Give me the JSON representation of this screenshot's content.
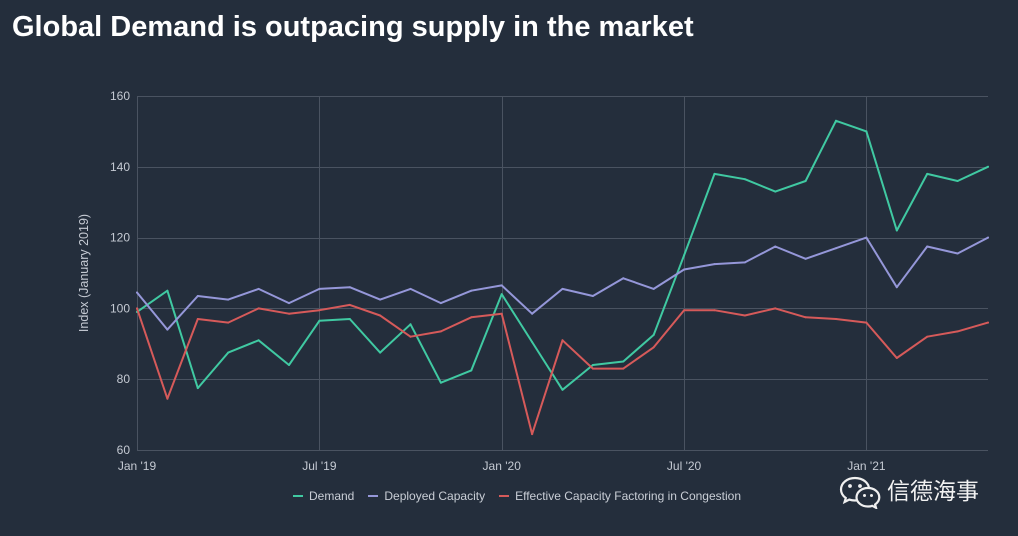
{
  "colors": {
    "background": "#242e3c",
    "grid": "#4a5361",
    "tick_text": "#c5cad3",
    "title": "#ffffff"
  },
  "chart_data": {
    "type": "line",
    "title": "Global Demand is outpacing supply in the market",
    "ylabel": "Index (January 2019)",
    "ylim": [
      60,
      160
    ],
    "yticks": [
      60,
      80,
      100,
      120,
      140,
      160
    ],
    "xlim": [
      "2019-01",
      "2021-05"
    ],
    "xticks": [
      {
        "label": "Jan '19",
        "x": "2019-01"
      },
      {
        "label": "Jul '19",
        "x": "2019-07"
      },
      {
        "label": "Jan '20",
        "x": "2020-01"
      },
      {
        "label": "Jul '20",
        "x": "2020-07"
      },
      {
        "label": "Jan '21",
        "x": "2021-01"
      }
    ],
    "x": [
      "2019-01",
      "2019-02",
      "2019-03",
      "2019-04",
      "2019-05",
      "2019-06",
      "2019-07",
      "2019-08",
      "2019-09",
      "2019-10",
      "2019-11",
      "2019-12",
      "2020-01",
      "2020-02",
      "2020-03",
      "2020-04",
      "2020-05",
      "2020-06",
      "2020-07",
      "2020-08",
      "2020-09",
      "2020-10",
      "2020-11",
      "2020-12",
      "2021-01",
      "2021-02",
      "2021-03",
      "2021-04",
      "2021-05"
    ],
    "series": [
      {
        "name": "Demand",
        "color": "#40c9a2",
        "values": [
          99,
          105,
          77.5,
          87.5,
          91,
          84,
          96.5,
          97,
          87.5,
          95.5,
          79,
          82.5,
          104,
          90.5,
          77,
          84,
          85,
          92.5,
          115,
          138,
          136.5,
          133,
          136,
          153,
          150,
          122,
          138,
          136,
          140
        ]
      },
      {
        "name": "Deployed Capacity",
        "color": "#9597d9",
        "values": [
          104.5,
          94,
          103.5,
          102.5,
          105.5,
          101.5,
          105.5,
          106,
          102.5,
          105.5,
          101.5,
          105,
          106.5,
          98.5,
          105.5,
          103.5,
          108.5,
          105.5,
          111,
          112.5,
          113,
          117.5,
          114,
          117,
          120,
          106,
          117.5,
          115.5,
          120
        ]
      },
      {
        "name": "Effective Capacity Factoring in Congestion",
        "color": "#d65a5a",
        "values": [
          100,
          74.5,
          97,
          96,
          100,
          98.5,
          99.5,
          101,
          98,
          92,
          93.5,
          97.5,
          98.5,
          64.5,
          91,
          83,
          83,
          89,
          99.5,
          99.5,
          98,
          100,
          97.5,
          97,
          96,
          86,
          92,
          93.5,
          96
        ]
      }
    ],
    "grid": true,
    "legend": "bottom-center"
  },
  "watermark": {
    "icon": "wechat-icon",
    "text": "信德海事"
  }
}
